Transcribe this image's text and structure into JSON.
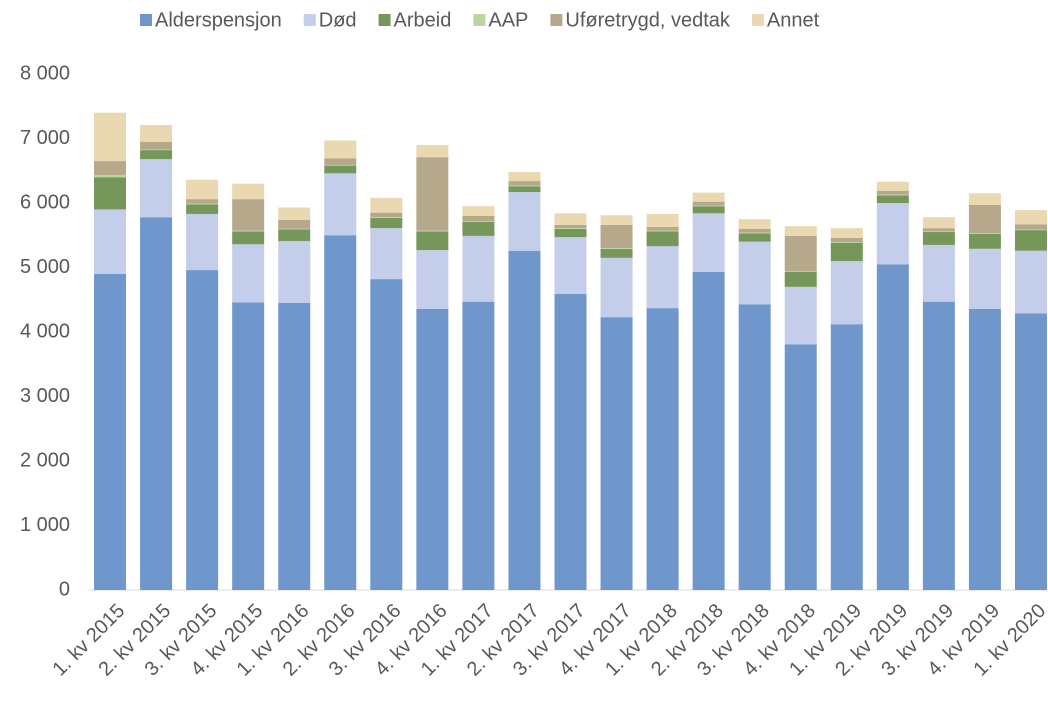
{
  "chart_data": {
    "type": "stacked_bar",
    "categories": [
      "1. kv 2015",
      "2. kv 2015",
      "3. kv 2015",
      "4. kv 2015",
      "1. kv 2016",
      "2. kv 2016",
      "3. kv 2016",
      "4. kv 2016",
      "1. kv 2017",
      "2. kv 2017",
      "3. kv 2017",
      "4. kv 2017",
      "1. kv 2018",
      "2. kv 2018",
      "3. kv 2018",
      "4. kv 2018",
      "1. kv 2019",
      "2. kv 2019",
      "3. kv 2019",
      "4. kv 2019",
      "1. kv 2020"
    ],
    "series": [
      {
        "name": "Alderspensjon",
        "color": "#6f97cc",
        "values": [
          4900,
          5780,
          4960,
          4460,
          4450,
          5500,
          4820,
          4360,
          4470,
          5260,
          4590,
          4230,
          4370,
          4930,
          4430,
          3810,
          4120,
          5050,
          4470,
          4360,
          4290
        ]
      },
      {
        "name": "Død",
        "color": "#c4cde9",
        "values": [
          1000,
          900,
          870,
          900,
          960,
          960,
          790,
          910,
          1020,
          910,
          880,
          920,
          960,
          910,
          970,
          890,
          980,
          950,
          880,
          930,
          970
        ]
      },
      {
        "name": "Arbeid",
        "color": "#76975a",
        "values": [
          500,
          140,
          150,
          200,
          180,
          120,
          160,
          290,
          220,
          90,
          130,
          140,
          230,
          110,
          130,
          230,
          280,
          120,
          200,
          230,
          320
        ]
      },
      {
        "name": "AAP",
        "color": "#b8d8a3",
        "values": [
          30,
          10,
          10,
          10,
          10,
          10,
          10,
          10,
          10,
          10,
          10,
          10,
          10,
          10,
          10,
          10,
          10,
          10,
          10,
          10,
          10
        ]
      },
      {
        "name": "Uføretrygd, vedtak",
        "color": "#b5a88b",
        "values": [
          220,
          120,
          70,
          490,
          140,
          100,
          70,
          1140,
          80,
          70,
          50,
          360,
          60,
          60,
          60,
          550,
          70,
          60,
          50,
          440,
          80
        ]
      },
      {
        "name": "Annet",
        "color": "#e9d8b0",
        "values": [
          750,
          260,
          300,
          240,
          190,
          280,
          230,
          190,
          150,
          140,
          180,
          150,
          200,
          140,
          150,
          150,
          150,
          140,
          170,
          180,
          220
        ]
      }
    ],
    "ylim": [
      0,
      8000
    ],
    "yticks": [
      {
        "value": 0,
        "label": "0"
      },
      {
        "value": 1000,
        "label": "1 000"
      },
      {
        "value": 2000,
        "label": "2 000"
      },
      {
        "value": 3000,
        "label": "3 000"
      },
      {
        "value": 4000,
        "label": "4 000"
      },
      {
        "value": 5000,
        "label": "5 000"
      },
      {
        "value": 6000,
        "label": "6 000"
      },
      {
        "value": 7000,
        "label": "7 000"
      },
      {
        "value": 8000,
        "label": "8 000"
      }
    ],
    "legend": "top"
  }
}
